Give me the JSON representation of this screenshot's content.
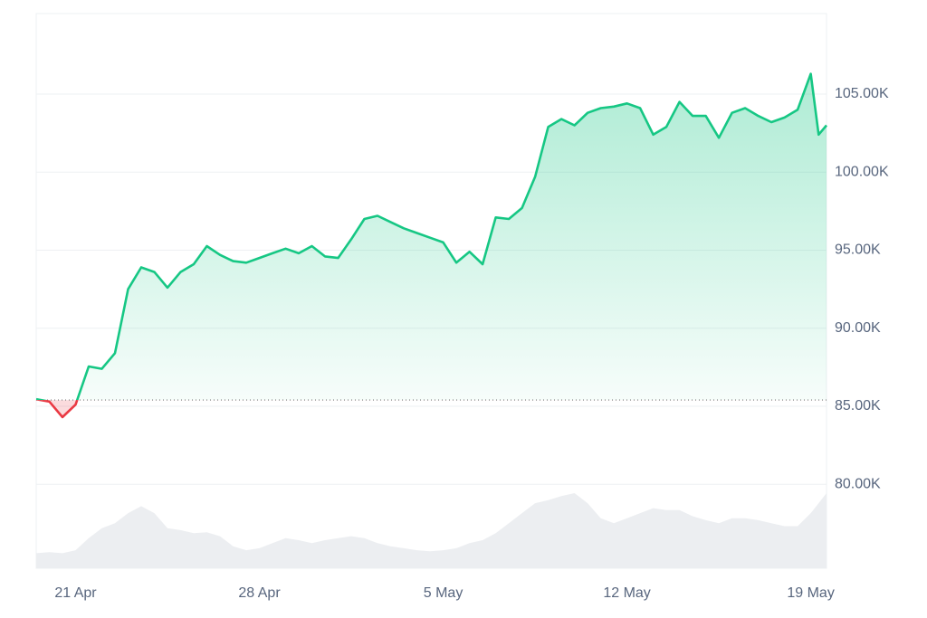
{
  "chart_data": {
    "type": "line",
    "color": "#16c784",
    "down_color": "#ea3943",
    "x": [
      19.5,
      20,
      20.5,
      21,
      21.5,
      22,
      22.5,
      23,
      23.5,
      24,
      24.5,
      25,
      25.5,
      26,
      26.5,
      27,
      27.5,
      28,
      28.5,
      29,
      29.5,
      30,
      30.5,
      31,
      31.5,
      32,
      32.5,
      33,
      33.5,
      34,
      34.5,
      35,
      35.5,
      36,
      36.5,
      37,
      37.5,
      38,
      38.5,
      39,
      39.5,
      40,
      40.5,
      41,
      41.5,
      42,
      42.5,
      43,
      43.5,
      44,
      44.5,
      45,
      45.5,
      46,
      46.5,
      47,
      47.5,
      48,
      48.5,
      49,
      49.3,
      49.6
    ],
    "values": [
      85450,
      85300,
      84300,
      85100,
      87550,
      87400,
      88400,
      92500,
      93900,
      93600,
      92600,
      93600,
      94100,
      95260,
      94700,
      94300,
      94200,
      94500,
      94800,
      95100,
      94800,
      95260,
      94600,
      94500,
      95700,
      97000,
      97200,
      96800,
      96400,
      96100,
      95800,
      95500,
      94200,
      94900,
      94100,
      97100,
      97000,
      97700,
      99700,
      102900,
      103400,
      103000,
      103800,
      104100,
      104200,
      104400,
      104100,
      102400,
      102900,
      104500,
      103600,
      103600,
      102200,
      103800,
      104100,
      103600,
      103200,
      103500,
      104000,
      106300,
      102400,
      103000
    ],
    "volume": [
      15,
      16,
      15,
      18,
      30,
      40,
      45,
      55,
      62,
      55,
      40,
      38,
      35,
      36,
      32,
      22,
      18,
      20,
      25,
      30,
      28,
      25,
      28,
      30,
      32,
      30,
      25,
      22,
      20,
      18,
      17,
      18,
      20,
      25,
      28,
      35,
      45,
      55,
      65,
      68,
      72,
      75,
      65,
      50,
      45,
      50,
      55,
      60,
      58,
      58,
      52,
      48,
      45,
      50,
      50,
      48,
      45,
      42,
      42,
      55,
      65,
      75
    ],
    "baseline": 85400,
    "xlim": [
      19.5,
      49.6
    ],
    "xticks": [
      {
        "value": 21,
        "label": "21 Apr"
      },
      {
        "value": 28,
        "label": "28 Apr"
      },
      {
        "value": 35,
        "label": "5 May"
      },
      {
        "value": 42,
        "label": "12 May"
      },
      {
        "value": 49,
        "label": "19 May"
      }
    ],
    "ylim": [
      74620,
      110160
    ],
    "yticks": [
      {
        "value": 80000,
        "label": "80.00K"
      },
      {
        "value": 85000,
        "label": "85.00K"
      },
      {
        "value": 90000,
        "label": "90.00K"
      },
      {
        "value": 95000,
        "label": "95.00K"
      },
      {
        "value": 100000,
        "label": "100.00K"
      },
      {
        "value": 105000,
        "label": "105.00K"
      }
    ],
    "grid": true
  }
}
